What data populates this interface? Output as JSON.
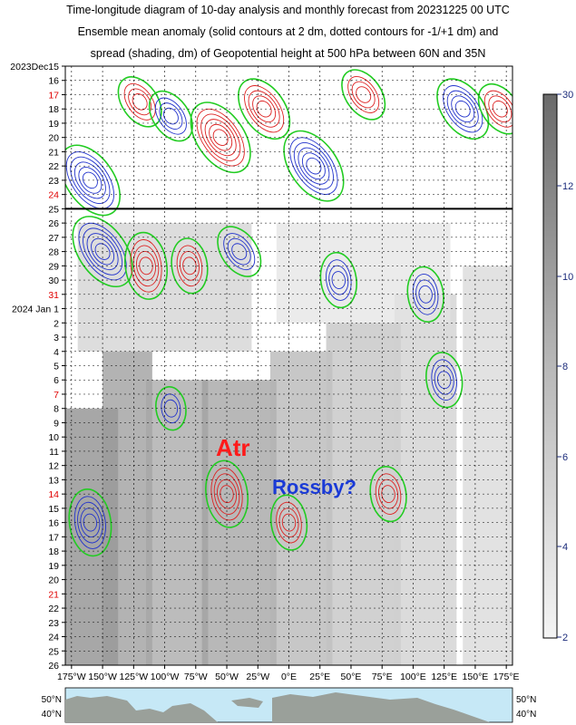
{
  "title_lines": [
    "Time-longitude diagram of 10-day analysis and monthly forecast from 20231225 00 UTC",
    "Ensemble mean anomaly (solid contours at 2 dm, dotted contours for -1/+1 dm) and",
    "spread (shading, dm) of Geopotential height at 500 hPa between 60N and 35N"
  ],
  "chart_data": {
    "type": "heatmap",
    "description_rows": "days",
    "y_axis": {
      "labels": [
        {
          "text": "2023Dec15",
          "color": "#000000"
        },
        {
          "text": "16",
          "color": "#000000"
        },
        {
          "text": "17",
          "color": "#e00000"
        },
        {
          "text": "18",
          "color": "#000000"
        },
        {
          "text": "19",
          "color": "#000000"
        },
        {
          "text": "20",
          "color": "#000000"
        },
        {
          "text": "21",
          "color": "#000000"
        },
        {
          "text": "22",
          "color": "#000000"
        },
        {
          "text": "23",
          "color": "#000000"
        },
        {
          "text": "24",
          "color": "#e00000"
        },
        {
          "text": "25",
          "color": "#000000"
        },
        {
          "text": "26",
          "color": "#000000"
        },
        {
          "text": "27",
          "color": "#000000"
        },
        {
          "text": "28",
          "color": "#000000"
        },
        {
          "text": "29",
          "color": "#000000"
        },
        {
          "text": "30",
          "color": "#000000"
        },
        {
          "text": "31",
          "color": "#e00000"
        },
        {
          "text": "2024 Jan 1",
          "color": "#000000"
        },
        {
          "text": "2",
          "color": "#000000"
        },
        {
          "text": "3",
          "color": "#000000"
        },
        {
          "text": "4",
          "color": "#000000"
        },
        {
          "text": "5",
          "color": "#000000"
        },
        {
          "text": "6",
          "color": "#000000"
        },
        {
          "text": "7",
          "color": "#e00000"
        },
        {
          "text": "8",
          "color": "#000000"
        },
        {
          "text": "9",
          "color": "#000000"
        },
        {
          "text": "10",
          "color": "#000000"
        },
        {
          "text": "11",
          "color": "#000000"
        },
        {
          "text": "12",
          "color": "#000000"
        },
        {
          "text": "13",
          "color": "#000000"
        },
        {
          "text": "14",
          "color": "#e00000"
        },
        {
          "text": "15",
          "color": "#000000"
        },
        {
          "text": "16",
          "color": "#000000"
        },
        {
          "text": "17",
          "color": "#000000"
        },
        {
          "text": "18",
          "color": "#000000"
        },
        {
          "text": "19",
          "color": "#000000"
        },
        {
          "text": "20",
          "color": "#000000"
        },
        {
          "text": "21",
          "color": "#e00000"
        },
        {
          "text": "22",
          "color": "#000000"
        },
        {
          "text": "23",
          "color": "#000000"
        },
        {
          "text": "24",
          "color": "#000000"
        },
        {
          "text": "25",
          "color": "#000000"
        },
        {
          "text": "26",
          "color": "#000000"
        }
      ]
    },
    "x_axis": {
      "tick_labels": [
        "175°W",
        "150°W",
        "125°W",
        "100°W",
        "75°W",
        "50°W",
        "25°W",
        "0°E",
        "25°E",
        "50°E",
        "75°E",
        "100°E",
        "125°E",
        "150°E",
        "175°E"
      ],
      "range": [
        -180,
        180
      ]
    },
    "analysis_forecast_boundary": "25",
    "colorbar": {
      "ticks": [
        "30",
        "12",
        "10",
        "8",
        "6",
        "4",
        "2"
      ],
      "range": [
        2,
        30
      ],
      "unit": "dm",
      "shading": "grey"
    },
    "latitude_labels": [
      "50°N",
      "40°N"
    ],
    "contour_colors": {
      "positive": "#dd2222",
      "negative": "#2233cc",
      "zero": "#22cc22",
      "boundary": "#000000"
    },
    "annotations": [
      {
        "text": "Atr",
        "color": "#ff1a1a"
      },
      {
        "text": "Rossby?",
        "color": "#1a3ad6"
      }
    ],
    "blobs": [
      {
        "lon": -120,
        "day": 2.5,
        "value": 6,
        "sign": 1
      },
      {
        "lon": -95,
        "day": 3.5,
        "value": -6,
        "sign": -1
      },
      {
        "lon": -55,
        "day": 5,
        "value": 10,
        "sign": 1
      },
      {
        "lon": -20,
        "day": 3,
        "value": 8,
        "sign": 1
      },
      {
        "lon": 20,
        "day": 7,
        "value": -10,
        "sign": -1
      },
      {
        "lon": 60,
        "day": 2,
        "value": 6,
        "sign": 1
      },
      {
        "lon": 140,
        "day": 3,
        "value": -8,
        "sign": -1
      },
      {
        "lon": 170,
        "day": 3,
        "value": 6,
        "sign": 1
      },
      {
        "lon": -160,
        "day": 8,
        "value": -10,
        "sign": -1
      },
      {
        "lon": -150,
        "day": 13,
        "value": -10,
        "sign": -1
      },
      {
        "lon": -115,
        "day": 14,
        "value": 8,
        "sign": 1
      },
      {
        "lon": -80,
        "day": 14,
        "value": 6,
        "sign": 1
      },
      {
        "lon": -40,
        "day": 13,
        "value": -6,
        "sign": -1
      },
      {
        "lon": 40,
        "day": 15,
        "value": -6,
        "sign": -1
      },
      {
        "lon": 110,
        "day": 16,
        "value": -6,
        "sign": -1
      },
      {
        "lon": -95,
        "day": 24,
        "value": -4,
        "sign": -1
      },
      {
        "lon": -160,
        "day": 32,
        "value": -8,
        "sign": -1
      },
      {
        "lon": -50,
        "day": 30,
        "value": 8,
        "sign": 1
      },
      {
        "lon": 0,
        "day": 32,
        "value": 6,
        "sign": 1
      },
      {
        "lon": 80,
        "day": 30,
        "value": 6,
        "sign": 1
      },
      {
        "lon": 125,
        "day": 22,
        "value": -6,
        "sign": -1
      }
    ]
  }
}
